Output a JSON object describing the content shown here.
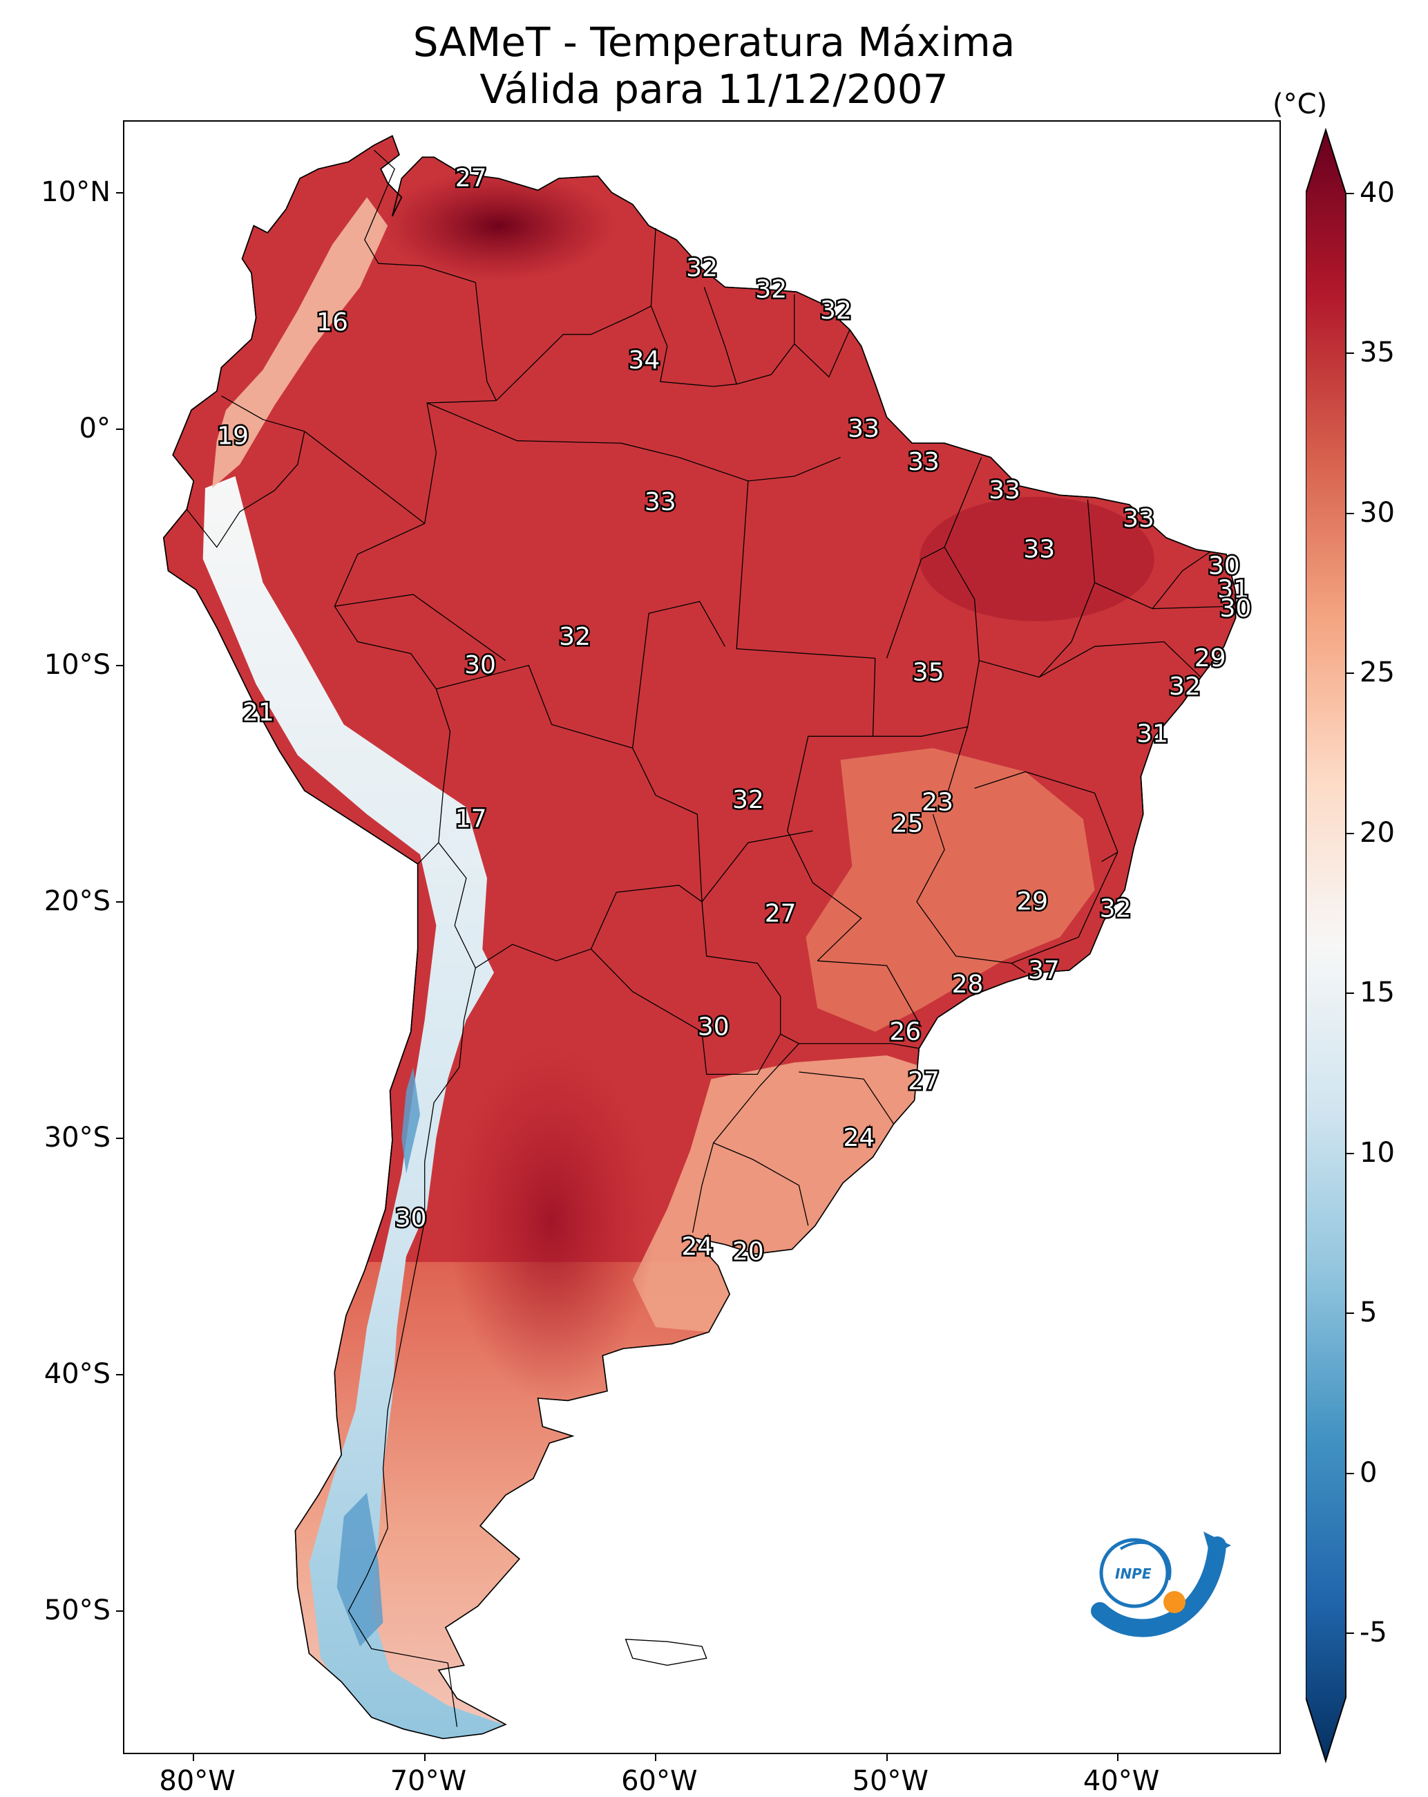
{
  "title": {
    "line1": "SAMeT - Temperatura Máxima",
    "line2": "Válida para 11/12/2007"
  },
  "axes": {
    "lat_labels": [
      {
        "text": "10°N",
        "lat": 10
      },
      {
        "text": "0°",
        "lat": 0
      },
      {
        "text": "10°S",
        "lat": -10
      },
      {
        "text": "20°S",
        "lat": -20
      },
      {
        "text": "30°S",
        "lat": -30
      },
      {
        "text": "40°S",
        "lat": -40
      },
      {
        "text": "50°S",
        "lat": -50
      }
    ],
    "lon_labels": [
      {
        "text": "80°W",
        "lon": -80
      },
      {
        "text": "70°W",
        "lon": -70
      },
      {
        "text": "60°W",
        "lon": -60
      },
      {
        "text": "50°W",
        "lon": -50
      },
      {
        "text": "40°W",
        "lon": -40
      }
    ],
    "lon_range": [
      -83,
      -33
    ],
    "lat_range": [
      -56,
      13
    ]
  },
  "colorbar": {
    "unit": "(°C)",
    "min": -7,
    "max": 40,
    "ticks": [
      "40",
      "35",
      "30",
      "25",
      "20",
      "15",
      "10",
      "5",
      "0",
      "-5"
    ],
    "colors": [
      "#053061",
      "#2166ac",
      "#4393c3",
      "#92c5de",
      "#d1e5f0",
      "#f7f7f7",
      "#fddbc7",
      "#f4a582",
      "#d6604d",
      "#b2182b",
      "#67001f"
    ]
  },
  "station_labels": [
    {
      "text": "27",
      "lon": -68.0,
      "lat": 10.6
    },
    {
      "text": "16",
      "lon": -74.0,
      "lat": 4.5
    },
    {
      "text": "19",
      "lon": -78.3,
      "lat": -0.3
    },
    {
      "text": "32",
      "lon": -58.0,
      "lat": 6.8
    },
    {
      "text": "32",
      "lon": -55.0,
      "lat": 5.9
    },
    {
      "text": "32",
      "lon": -52.2,
      "lat": 5.0
    },
    {
      "text": "34",
      "lon": -60.5,
      "lat": 2.9
    },
    {
      "text": "33",
      "lon": -51.0,
      "lat": 0.0
    },
    {
      "text": "33",
      "lon": -48.4,
      "lat": -1.4
    },
    {
      "text": "33",
      "lon": -59.8,
      "lat": -3.1
    },
    {
      "text": "33",
      "lon": -44.9,
      "lat": -2.6
    },
    {
      "text": "33",
      "lon": -39.1,
      "lat": -3.8
    },
    {
      "text": "33",
      "lon": -43.4,
      "lat": -5.1
    },
    {
      "text": "30",
      "lon": -35.4,
      "lat": -5.8
    },
    {
      "text": "31",
      "lon": -35.0,
      "lat": -6.8
    },
    {
      "text": "30",
      "lon": -34.9,
      "lat": -7.6
    },
    {
      "text": "32",
      "lon": -63.5,
      "lat": -8.8
    },
    {
      "text": "30",
      "lon": -67.6,
      "lat": -10.0
    },
    {
      "text": "29",
      "lon": -36.0,
      "lat": -9.7
    },
    {
      "text": "35",
      "lon": -48.2,
      "lat": -10.3
    },
    {
      "text": "32",
      "lon": -37.1,
      "lat": -10.9
    },
    {
      "text": "21",
      "lon": -77.2,
      "lat": -12.0
    },
    {
      "text": "31",
      "lon": -38.5,
      "lat": -12.9
    },
    {
      "text": "23",
      "lon": -47.8,
      "lat": -15.8
    },
    {
      "text": "32",
      "lon": -56.0,
      "lat": -15.7
    },
    {
      "text": "25",
      "lon": -49.1,
      "lat": -16.7
    },
    {
      "text": "17",
      "lon": -68.0,
      "lat": -16.5
    },
    {
      "text": "29",
      "lon": -43.7,
      "lat": -20.0
    },
    {
      "text": "32",
      "lon": -40.1,
      "lat": -20.3
    },
    {
      "text": "27",
      "lon": -54.6,
      "lat": -20.5
    },
    {
      "text": "37",
      "lon": -43.2,
      "lat": -22.9
    },
    {
      "text": "28",
      "lon": -46.5,
      "lat": -23.5
    },
    {
      "text": "30",
      "lon": -57.5,
      "lat": -25.3
    },
    {
      "text": "26",
      "lon": -49.2,
      "lat": -25.5
    },
    {
      "text": "27",
      "lon": -48.4,
      "lat": -27.6
    },
    {
      "text": "24",
      "lon": -51.2,
      "lat": -30.0
    },
    {
      "text": "30",
      "lon": -70.6,
      "lat": -33.4
    },
    {
      "text": "24",
      "lon": -58.2,
      "lat": -34.6
    },
    {
      "text": "20",
      "lon": -56.0,
      "lat": -34.8
    }
  ],
  "logo": {
    "text": "INPE"
  }
}
